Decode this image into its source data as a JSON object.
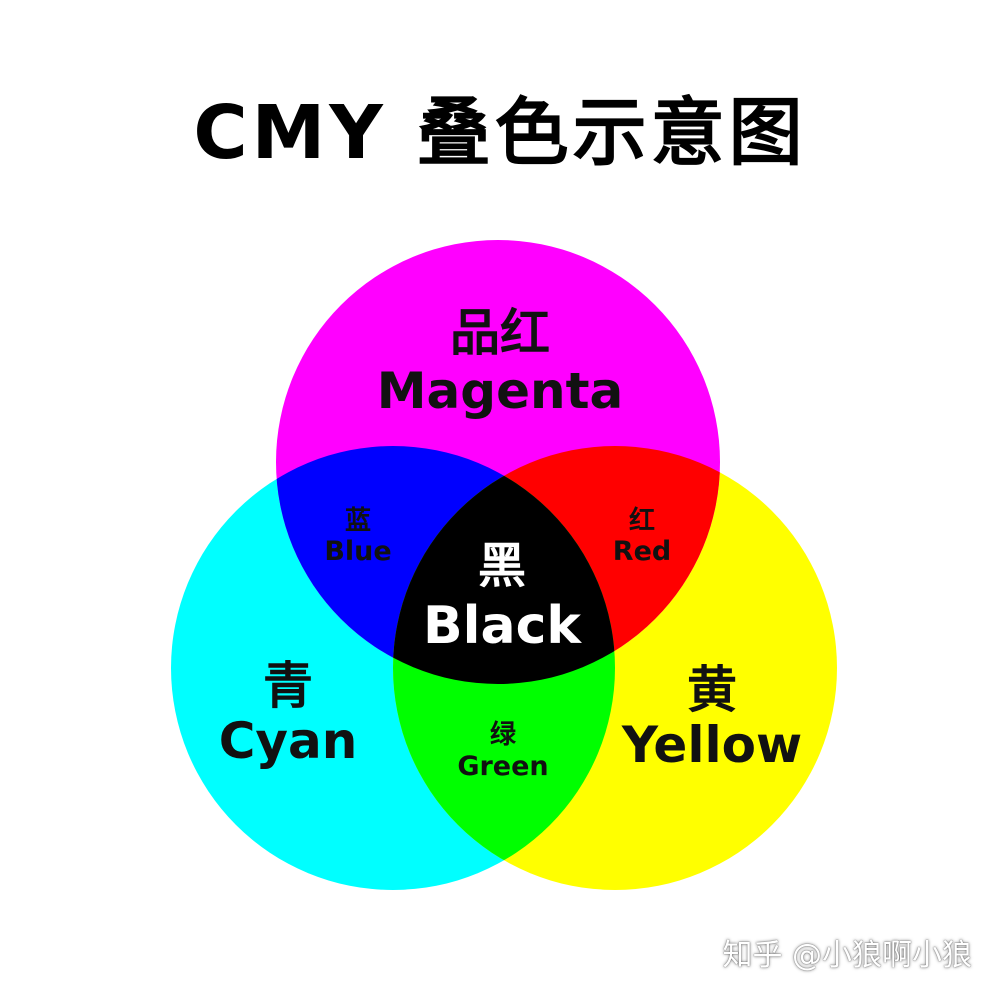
{
  "title": "CMY 叠色示意图",
  "circles": {
    "magenta": {
      "zh": "品红",
      "en": "Magenta",
      "color": "#FF00FF"
    },
    "cyan": {
      "zh": "青",
      "en": "Cyan",
      "color": "#00FFFF"
    },
    "yellow": {
      "zh": "黄",
      "en": "Yellow",
      "color": "#FFFF00"
    }
  },
  "overlaps": {
    "blue": {
      "zh": "蓝",
      "en": "Blue",
      "color": "#0000FF"
    },
    "red": {
      "zh": "红",
      "en": "Red",
      "color": "#FF0000"
    },
    "green": {
      "zh": "绿",
      "en": "Green",
      "color": "#00FF00"
    },
    "black": {
      "zh": "黑",
      "en": "Black",
      "color": "#000000"
    }
  },
  "watermark": "知乎 @小狼啊小狼"
}
